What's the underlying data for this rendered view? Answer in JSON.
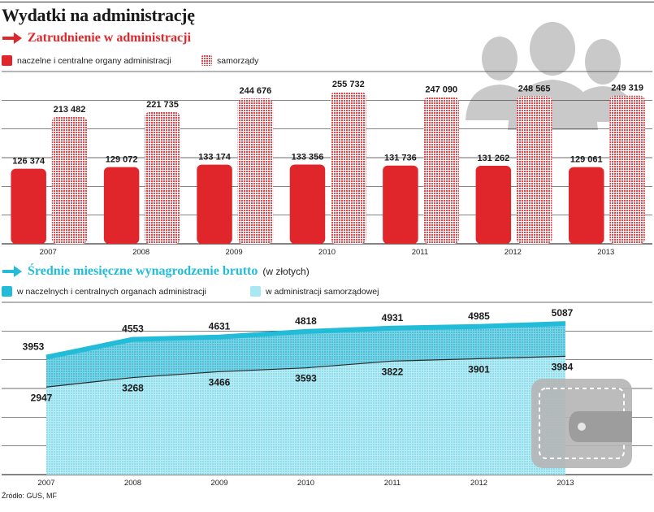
{
  "title": "Wydatki na administrację",
  "source": "Źródło: GUS, MF",
  "colors": {
    "red": "#e0262b",
    "red_pattern": "#e8454a",
    "cyan_dark": "#23bcd8",
    "cyan_light": "#a9e8f2",
    "grid": "#3a3a3a",
    "silhouette": "#c9c9c9"
  },
  "employment": {
    "title": "Zatrudnienie w administracji",
    "legend": [
      "naczelne i centralne organy administracji",
      "samorządy"
    ]
  },
  "salary": {
    "title": "Średnie miesięczne wynagrodzenie brutto",
    "title_note": "(w złotych)",
    "legend": [
      "w naczelnych i centralnych organach administracji",
      "w administracji samorządowej"
    ]
  },
  "chart_data": [
    {
      "type": "bar",
      "title": "Zatrudnienie w administracji",
      "categories": [
        "2007",
        "2008",
        "2009",
        "2010",
        "2011",
        "2012",
        "2013"
      ],
      "series": [
        {
          "name": "naczelne i centralne organy administracji",
          "values": [
            126374,
            129072,
            133174,
            133356,
            131736,
            131262,
            129061
          ]
        },
        {
          "name": "samorządy",
          "values": [
            213482,
            221735,
            244676,
            255732,
            247090,
            248565,
            249319
          ]
        }
      ],
      "labels": {
        "naczelne i centralne organy administracji": [
          "126 374",
          "129 072",
          "133 174",
          "133 356",
          "131 736",
          "131 262",
          "129 061"
        ],
        "samorządy": [
          "213 482",
          "221 735",
          "244 676",
          "255 732",
          "247 090",
          "248 565",
          "249 319"
        ]
      },
      "ylim": [
        0,
        290000
      ],
      "grid": true,
      "legend_position": "top-left"
    },
    {
      "type": "area",
      "title": "Średnie miesięczne wynagrodzenie brutto (w złotych)",
      "x": [
        "2007",
        "2008",
        "2009",
        "2010",
        "2011",
        "2012",
        "2013"
      ],
      "series": [
        {
          "name": "w naczelnych i centralnych organach administracji",
          "values": [
            3953,
            4553,
            4631,
            4818,
            4931,
            4985,
            5087
          ]
        },
        {
          "name": "w administracji samorządowej",
          "values": [
            2947,
            3268,
            3466,
            3593,
            3822,
            3901,
            3984
          ]
        }
      ],
      "ylim": [
        0,
        5800
      ],
      "grid": true,
      "legend_position": "top-left"
    }
  ]
}
